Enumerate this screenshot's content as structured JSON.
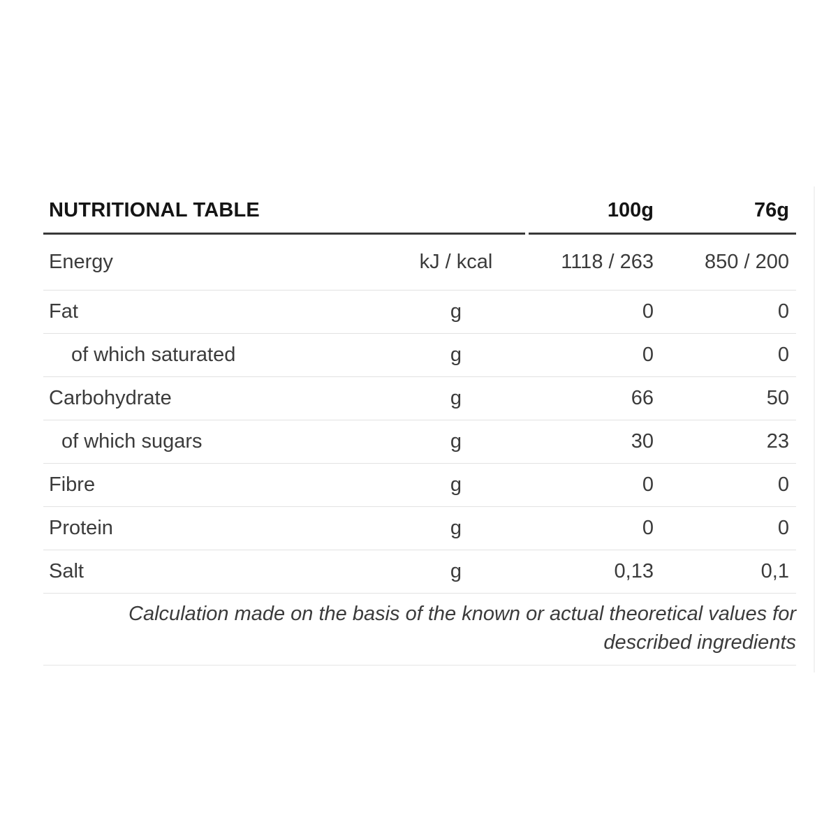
{
  "table": {
    "title": "NUTRITIONAL TABLE",
    "columns": {
      "per_100g": "100g",
      "per_serving": "76g"
    },
    "rows": [
      {
        "label": "Energy",
        "unit": "kJ / kcal",
        "per_100g": "1118 / 263",
        "per_serving": "850 / 200",
        "indent": 0
      },
      {
        "label": "Fat",
        "unit": "g",
        "per_100g": "0",
        "per_serving": "0",
        "indent": 0
      },
      {
        "label": "of which saturated",
        "unit": "g",
        "per_100g": "0",
        "per_serving": "0",
        "indent": 2
      },
      {
        "label": "Carbohydrate",
        "unit": "g",
        "per_100g": "66",
        "per_serving": "50",
        "indent": 0
      },
      {
        "label": "of which sugars",
        "unit": "g",
        "per_100g": "30",
        "per_serving": "23",
        "indent": 1
      },
      {
        "label": "Fibre",
        "unit": "g",
        "per_100g": "0",
        "per_serving": "0",
        "indent": 0
      },
      {
        "label": "Protein",
        "unit": "g",
        "per_100g": "0",
        "per_serving": "0",
        "indent": 0
      },
      {
        "label": "Salt",
        "unit": "g",
        "per_100g": "0,13",
        "per_serving": "0,1",
        "indent": 0
      }
    ],
    "footnote": "Calculation made on the basis of the known or actual theoretical values for described ingredients",
    "colors": {
      "header_rule": "#383838",
      "row_rule": "#e2e2e2",
      "header_text": "#151515",
      "body_text": "#3b3b3b",
      "background": "#ffffff"
    }
  }
}
